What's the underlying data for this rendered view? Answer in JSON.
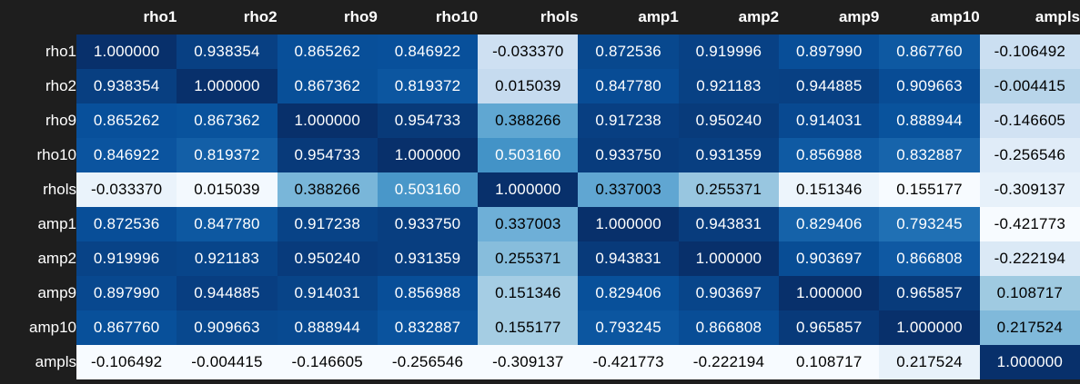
{
  "chart_data": {
    "type": "heatmap",
    "x": [
      "rho1",
      "rho2",
      "rho9",
      "rho10",
      "rhols",
      "amp1",
      "amp2",
      "amp9",
      "amp10",
      "ampls"
    ],
    "y": [
      "rho1",
      "rho2",
      "rho9",
      "rho10",
      "rhols",
      "amp1",
      "amp2",
      "amp9",
      "amp10",
      "ampls"
    ],
    "values": [
      [
        1.0,
        0.938354,
        0.865262,
        0.846922,
        -0.03337,
        0.872536,
        0.919996,
        0.89799,
        0.86776,
        -0.106492
      ],
      [
        0.938354,
        1.0,
        0.867362,
        0.819372,
        0.015039,
        0.84778,
        0.921183,
        0.944885,
        0.909663,
        -0.004415
      ],
      [
        0.865262,
        0.867362,
        1.0,
        0.954733,
        0.388266,
        0.917238,
        0.95024,
        0.914031,
        0.888944,
        -0.146605
      ],
      [
        0.846922,
        0.819372,
        0.954733,
        1.0,
        0.50316,
        0.93375,
        0.931359,
        0.856988,
        0.832887,
        -0.256546
      ],
      [
        -0.03337,
        0.015039,
        0.388266,
        0.50316,
        1.0,
        0.337003,
        0.255371,
        0.151346,
        0.155177,
        -0.309137
      ],
      [
        0.872536,
        0.84778,
        0.917238,
        0.93375,
        0.337003,
        1.0,
        0.943831,
        0.829406,
        0.793245,
        -0.421773
      ],
      [
        0.919996,
        0.921183,
        0.95024,
        0.931359,
        0.255371,
        0.943831,
        1.0,
        0.903697,
        0.866808,
        -0.222194
      ],
      [
        0.89799,
        0.944885,
        0.914031,
        0.856988,
        0.151346,
        0.829406,
        0.903697,
        1.0,
        0.965857,
        0.108717
      ],
      [
        0.86776,
        0.909663,
        0.888944,
        0.832887,
        0.155177,
        0.793245,
        0.866808,
        0.965857,
        1.0,
        0.217524
      ],
      [
        -0.106492,
        -0.004415,
        -0.146605,
        -0.256546,
        -0.309137,
        -0.421773,
        -0.222194,
        0.108717,
        0.217524,
        1.0
      ]
    ],
    "value_labels": [
      [
        "1.000000",
        "0.938354",
        "0.865262",
        "0.846922",
        "-0.033370",
        "0.872536",
        "0.919996",
        "0.897990",
        "0.867760",
        "-0.106492"
      ],
      [
        "0.938354",
        "1.000000",
        "0.867362",
        "0.819372",
        "0.015039",
        "0.847780",
        "0.921183",
        "0.944885",
        "0.909663",
        "-0.004415"
      ],
      [
        "0.865262",
        "0.867362",
        "1.000000",
        "0.954733",
        "0.388266",
        "0.917238",
        "0.950240",
        "0.914031",
        "0.888944",
        "-0.146605"
      ],
      [
        "0.846922",
        "0.819372",
        "0.954733",
        "1.000000",
        "0.503160",
        "0.933750",
        "0.931359",
        "0.856988",
        "0.832887",
        "-0.256546"
      ],
      [
        "-0.033370",
        "0.015039",
        "0.388266",
        "0.503160",
        "1.000000",
        "0.337003",
        "0.255371",
        "0.151346",
        "0.155177",
        "-0.309137"
      ],
      [
        "0.872536",
        "0.847780",
        "0.917238",
        "0.933750",
        "0.337003",
        "1.000000",
        "0.943831",
        "0.829406",
        "0.793245",
        "-0.421773"
      ],
      [
        "0.919996",
        "0.921183",
        "0.950240",
        "0.931359",
        "0.255371",
        "0.943831",
        "1.000000",
        "0.903697",
        "0.866808",
        "-0.222194"
      ],
      [
        "0.897990",
        "0.944885",
        "0.914031",
        "0.856988",
        "0.151346",
        "0.829406",
        "0.903697",
        "1.000000",
        "0.965857",
        "0.108717"
      ],
      [
        "0.867760",
        "0.909663",
        "0.888944",
        "0.832887",
        "0.155177",
        "0.793245",
        "0.866808",
        "0.965857",
        "1.000000",
        "0.217524"
      ],
      [
        "-0.106492",
        "-0.004415",
        "-0.146605",
        "-0.256546",
        "-0.309137",
        "-0.421773",
        "-0.222194",
        "0.108717",
        "0.217524",
        "1.000000"
      ]
    ],
    "title": "",
    "xlabel": "",
    "ylabel": "",
    "colormap": "Blues (per-column)",
    "colors": {
      "background": "#1e1e1e",
      "header_text": "#ffffff",
      "light_text": "#000000",
      "dark_text": "#ffffff"
    }
  }
}
